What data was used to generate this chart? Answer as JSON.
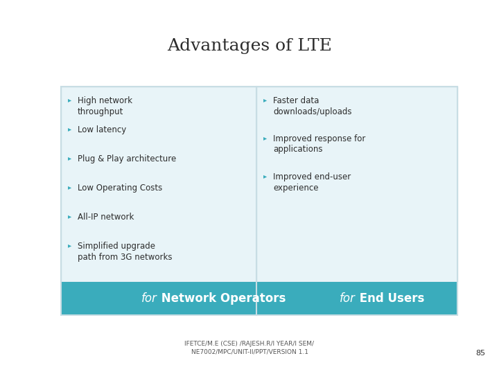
{
  "title": "Advantages of LTE",
  "title_fontsize": 18,
  "title_font": "serif",
  "background_color": "#ffffff",
  "box_bg_color": "#e8f4f8",
  "header_bg_color": "#3aacbc",
  "header_text_color": "#ffffff",
  "bullet_color": "#3aacbc",
  "text_color": "#2c2c2c",
  "left_header_italic": "for",
  "left_header_bold": " Network Operators",
  "right_header_italic": "for",
  "right_header_bold": " End Users",
  "left_bullets": [
    "High network\nthroughput",
    "Low latency",
    "Plug & Play architecture",
    "Low Operating Costs",
    "All-IP network",
    "Simplified upgrade\npath from 3G networks"
  ],
  "right_bullets": [
    "Faster data\ndownloads/uploads",
    "Improved response for\napplications",
    "Improved end-user\nexperience"
  ],
  "footer_text": "IFETCE/M.E (CSE) /RAJESH.R/I YEAR/I SEM/\nNE7002/MPC/UNIT-II/PPT/VERSION 1.1",
  "footer_fontsize": 6.5,
  "page_number": "85",
  "box_border_color": "#c8dde4"
}
